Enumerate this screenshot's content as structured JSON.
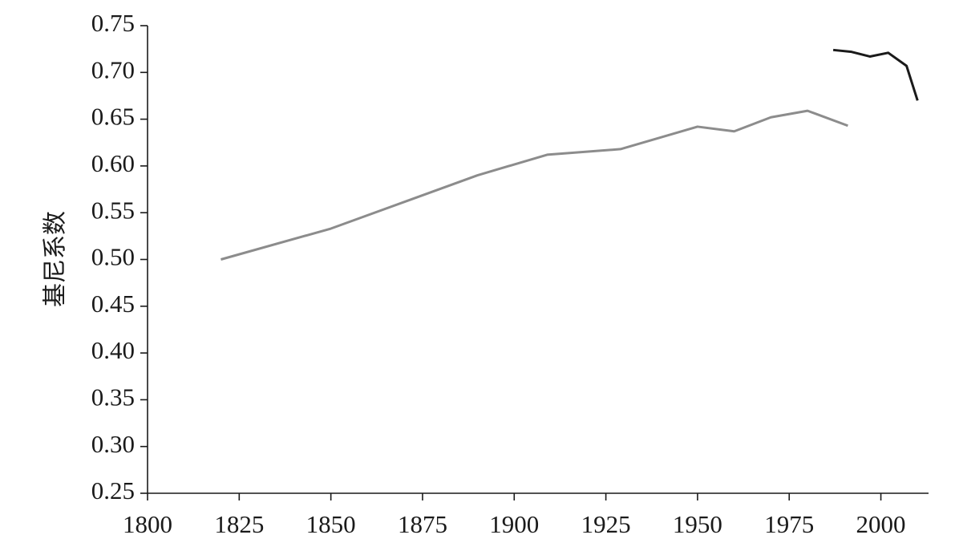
{
  "chart_data": {
    "type": "line",
    "y_label": "基尼系数",
    "xlim": [
      1800,
      2013
    ],
    "xticks": [
      1800,
      1825,
      1850,
      1875,
      1900,
      1925,
      1950,
      1975,
      2000
    ],
    "ylim": [
      0.25,
      0.75
    ],
    "yticks": [
      0.25,
      {
        "value": 0.3,
        "label": "0.30"
      },
      0.35,
      {
        "value": 0.4,
        "label": "0.40"
      },
      0.45,
      {
        "value": 0.5,
        "label": "0.50"
      },
      0.55,
      {
        "value": 0.6,
        "label": "0.60"
      },
      0.65,
      {
        "value": 0.7,
        "label": "0.70"
      },
      0.75
    ],
    "grid": false,
    "series": [
      {
        "color": "#8c8c8c",
        "x": [
          1820,
          1850,
          1890,
          1909,
          1929,
          1950,
          1960,
          1970,
          1980,
          1991
        ],
        "values": [
          0.5,
          0.533,
          0.59,
          0.612,
          0.618,
          0.642,
          0.637,
          0.652,
          0.659,
          0.643
        ]
      },
      {
        "color": "#1a1a1a",
        "x": [
          1987,
          1992,
          1997,
          2002,
          2007,
          2010
        ],
        "values": [
          0.724,
          0.722,
          0.717,
          0.721,
          0.707,
          0.67
        ]
      }
    ]
  }
}
